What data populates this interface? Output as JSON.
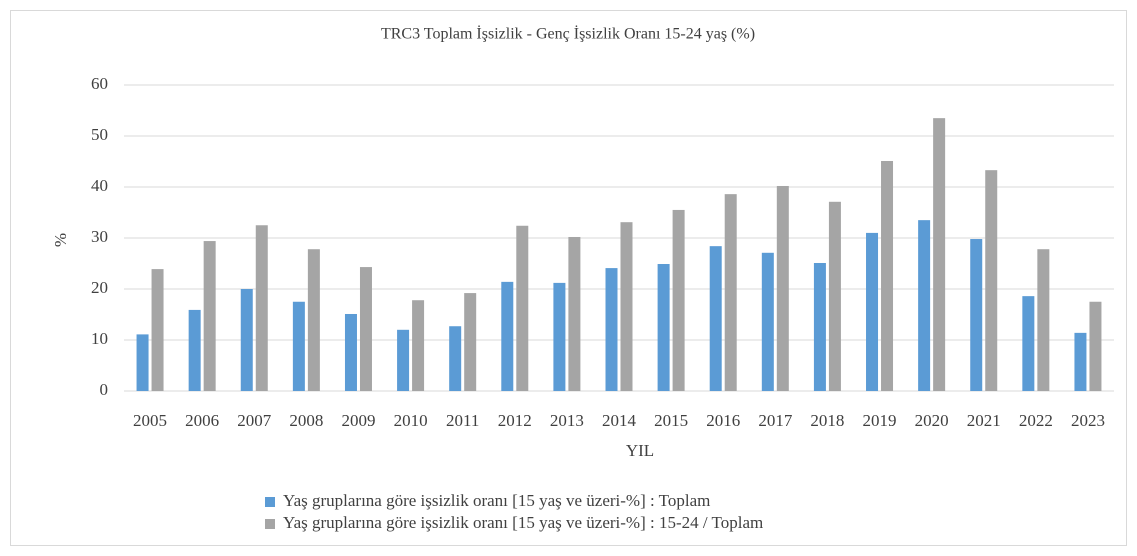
{
  "chart_data": {
    "type": "bar",
    "title": "TRC3  Toplam İşsizlik - Genç İşsizlik Oranı 15-24 yaş (%)",
    "xlabel": "YIL",
    "ylabel": "%",
    "categories": [
      "2005",
      "2006",
      "2007",
      "2008",
      "2009",
      "2010",
      "2011",
      "2012",
      "2013",
      "2014",
      "2015",
      "2016",
      "2017",
      "2018",
      "2019",
      "2020",
      "2021",
      "2022",
      "2023"
    ],
    "series": [
      {
        "name": "Yaş gruplarına göre işsizlik oranı [15 yaş ve üzeri-%] : Toplam",
        "color": "#5b9bd5",
        "values": [
          11.1,
          15.9,
          20.0,
          17.5,
          15.1,
          12.0,
          12.7,
          21.4,
          21.2,
          24.1,
          24.9,
          28.4,
          27.1,
          25.1,
          31.0,
          33.5,
          29.8,
          18.6,
          11.4
        ]
      },
      {
        "name": "Yaş gruplarına göre işsizlik oranı [15 yaş ve üzeri-%] : 15-24 / Toplam",
        "color": "#a5a5a5",
        "values": [
          23.9,
          29.4,
          32.5,
          27.8,
          24.3,
          17.8,
          19.2,
          32.4,
          30.2,
          33.1,
          35.5,
          38.6,
          40.2,
          37.1,
          45.1,
          53.5,
          43.3,
          27.8,
          17.5
        ]
      }
    ],
    "ylim": [
      0,
      60
    ],
    "yticks": [
      0,
      10,
      20,
      30,
      40,
      50,
      60
    ],
    "grid": true,
    "legend": "bottom"
  }
}
